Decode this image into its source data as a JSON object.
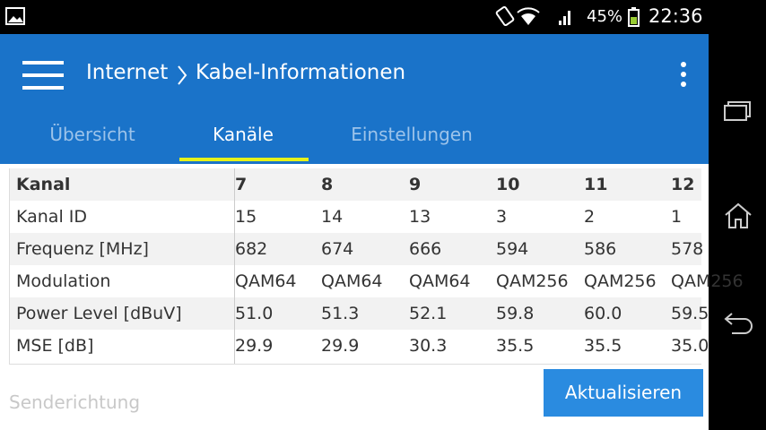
{
  "status_bar": {
    "battery": "45%",
    "time": "22:36"
  },
  "app_bar": {
    "breadcrumb": [
      "Internet",
      "Kabel-Informationen"
    ]
  },
  "tabs": [
    {
      "label": "Übersicht",
      "active": false
    },
    {
      "label": "Kanäle",
      "active": true
    },
    {
      "label": "Einstellungen",
      "active": false
    }
  ],
  "table": {
    "header": [
      "Kanal",
      "7",
      "8",
      "9",
      "10",
      "11",
      "12"
    ],
    "rows": [
      [
        "Kanal ID",
        "15",
        "14",
        "13",
        "3",
        "2",
        "1"
      ],
      [
        "Frequenz [MHz]",
        "682",
        "674",
        "666",
        "594",
        "586",
        "578"
      ],
      [
        "Modulation",
        "QAM64",
        "QAM64",
        "QAM64",
        "QAM256",
        "QAM256",
        "QAM256"
      ],
      [
        "Power Level [dBuV]",
        "51.0",
        "51.3",
        "52.1",
        "59.8",
        "60.0",
        "59.5"
      ],
      [
        "MSE [dB]",
        "29.9",
        "29.9",
        "30.3",
        "35.5",
        "35.5",
        "35.0"
      ]
    ]
  },
  "footer": {
    "section_label": "Senderichtung",
    "button": "Aktualisieren"
  }
}
